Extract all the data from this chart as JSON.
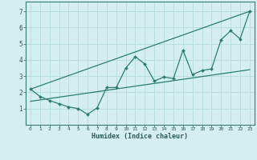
{
  "xlabel": "Humidex (Indice chaleur)",
  "bg_color": "#d4efed",
  "grid_color": "#b8dedd",
  "line_color": "#2d7d6e",
  "xlim": [
    -0.5,
    23.5
  ],
  "ylim": [
    0.0,
    7.6
  ],
  "xticks": [
    0,
    1,
    2,
    3,
    4,
    5,
    6,
    7,
    8,
    9,
    10,
    11,
    12,
    13,
    14,
    15,
    16,
    17,
    18,
    19,
    20,
    21,
    22,
    23
  ],
  "yticks": [
    1,
    2,
    3,
    4,
    5,
    6,
    7
  ],
  "data_x": [
    0,
    1,
    2,
    3,
    4,
    5,
    6,
    7,
    8,
    9,
    10,
    11,
    12,
    13,
    14,
    15,
    16,
    17,
    18,
    19,
    20,
    21,
    22,
    23
  ],
  "data_y": [
    2.2,
    1.75,
    1.5,
    1.3,
    1.1,
    1.0,
    0.65,
    1.05,
    2.3,
    2.3,
    3.5,
    4.2,
    3.75,
    2.7,
    2.95,
    2.85,
    4.6,
    3.1,
    3.35,
    3.45,
    5.25,
    5.8,
    5.3,
    7.0
  ],
  "trend1_x": [
    0,
    23
  ],
  "trend1_y": [
    2.2,
    7.0
  ],
  "trend2_x": [
    0,
    23
  ],
  "trend2_y": [
    1.45,
    3.4
  ]
}
